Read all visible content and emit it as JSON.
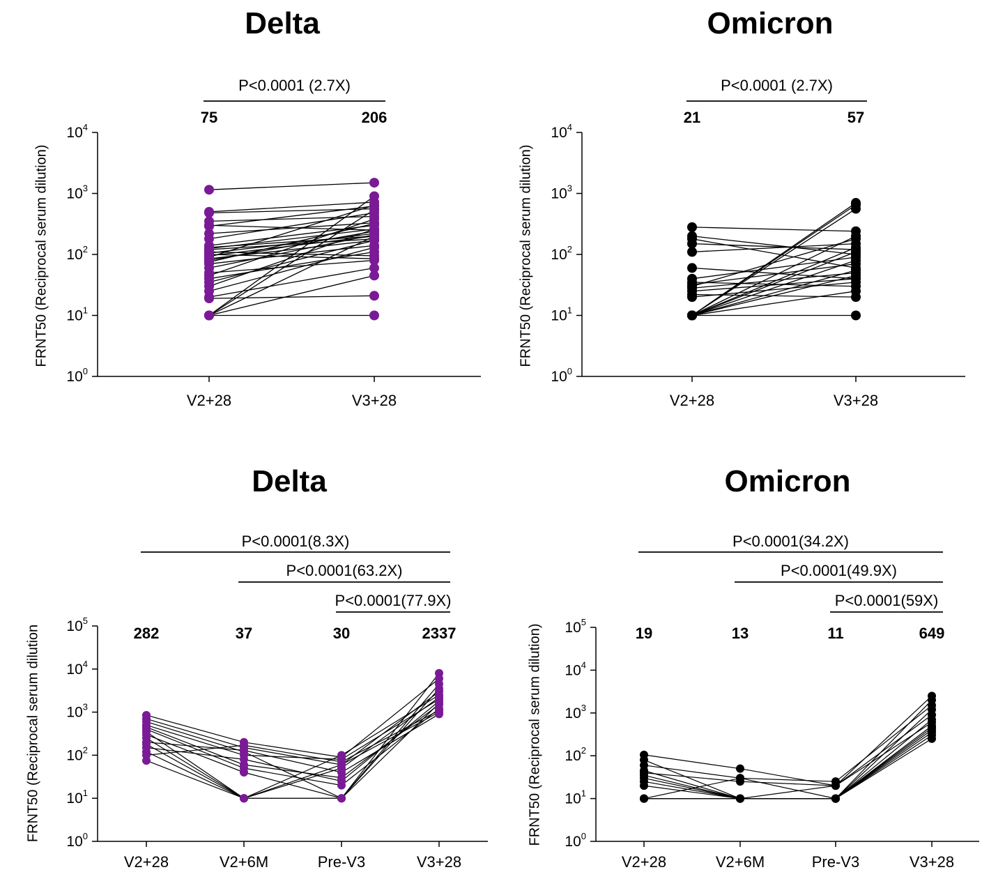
{
  "chart_data": [
    {
      "type": "scatter",
      "title": "Delta",
      "ylabel": "FRNT50  (Reciprocal serum dilution)",
      "yscale": "log",
      "ylim": [
        1,
        10000
      ],
      "ytick_base": "10",
      "ytick_exponents": [
        "0",
        "1",
        "2",
        "3",
        "4"
      ],
      "categories": [
        "V2+28",
        "V3+28"
      ],
      "geomean_labels": [
        "75",
        "206"
      ],
      "color": "#7a1a96",
      "comparisons": [
        {
          "from": 0,
          "to": 1,
          "label": "P<0.0001 (2.7X)"
        }
      ],
      "pairs": [
        [
          1150,
          1500
        ],
        [
          500,
          720
        ],
        [
          480,
          560
        ],
        [
          350,
          420
        ],
        [
          300,
          250
        ],
        [
          290,
          620
        ],
        [
          220,
          330
        ],
        [
          180,
          480
        ],
        [
          140,
          300
        ],
        [
          130,
          200
        ],
        [
          125,
          260
        ],
        [
          120,
          180
        ],
        [
          110,
          95
        ],
        [
          105,
          220
        ],
        [
          100,
          85
        ],
        [
          95,
          200
        ],
        [
          90,
          640
        ],
        [
          85,
          170
        ],
        [
          80,
          240
        ],
        [
          75,
          320
        ],
        [
          70,
          140
        ],
        [
          60,
          210
        ],
        [
          50,
          80
        ],
        [
          45,
          380
        ],
        [
          40,
          110
        ],
        [
          35,
          170
        ],
        [
          30,
          260
        ],
        [
          25,
          130
        ],
        [
          20,
          60
        ],
        [
          19,
          21
        ],
        [
          10,
          10
        ],
        [
          10,
          45
        ],
        [
          10,
          200
        ],
        [
          10,
          540
        ],
        [
          10,
          900
        ]
      ]
    },
    {
      "type": "scatter",
      "title": "Omicron",
      "ylabel": "FRNT50  (Reciprocal serum dilution)",
      "yscale": "log",
      "ylim": [
        1,
        10000
      ],
      "ytick_base": "10",
      "ytick_exponents": [
        "0",
        "1",
        "2",
        "3",
        "4"
      ],
      "categories": [
        "V2+28",
        "V3+28"
      ],
      "geomean_labels": [
        "21",
        "57"
      ],
      "color": "#000000",
      "comparisons": [
        {
          "from": 0,
          "to": 1,
          "label": "P<0.0001 (2.7X)"
        }
      ],
      "pairs": [
        [
          280,
          240
        ],
        [
          200,
          100
        ],
        [
          180,
          60
        ],
        [
          150,
          120
        ],
        [
          110,
          150
        ],
        [
          60,
          40
        ],
        [
          40,
          90
        ],
        [
          35,
          30
        ],
        [
          32,
          70
        ],
        [
          30,
          180
        ],
        [
          28,
          50
        ],
        [
          25,
          40
        ],
        [
          22,
          20
        ],
        [
          20,
          35
        ],
        [
          10,
          10
        ],
        [
          10,
          25
        ],
        [
          10,
          45
        ],
        [
          10,
          55
        ],
        [
          10,
          80
        ],
        [
          10,
          110
        ],
        [
          10,
          130
        ],
        [
          10,
          200
        ],
        [
          10,
          560
        ],
        [
          10,
          650
        ],
        [
          10,
          700
        ]
      ]
    },
    {
      "type": "scatter",
      "title": "Delta",
      "ylabel": "FRNT50  (Reciprocal serum dilution",
      "yscale": "log",
      "ylim": [
        1,
        100000
      ],
      "ytick_base": "10",
      "ytick_exponents": [
        "0",
        "1",
        "2",
        "3",
        "4",
        "5"
      ],
      "categories": [
        "V2+28",
        "V2+6M",
        "Pre-V3",
        "V3+28"
      ],
      "geomean_labels": [
        "282",
        "37",
        "30",
        "2337"
      ],
      "color": "#7a1a96",
      "comparisons": [
        {
          "from": 0,
          "to": 3,
          "label": "P<0.0001(8.3X)"
        },
        {
          "from": 1,
          "to": 3,
          "label": "P<0.0001(63.2X)"
        },
        {
          "from": 2,
          "to": 3,
          "label": "P<0.0001(77.9X)"
        }
      ],
      "series_lines": [
        [
          850,
          200,
          90,
          6000
        ],
        [
          700,
          150,
          60,
          3000
        ],
        [
          600,
          120,
          10,
          8000
        ],
        [
          500,
          100,
          80,
          2000
        ],
        [
          450,
          60,
          30,
          1500
        ],
        [
          400,
          50,
          20,
          1200
        ],
        [
          350,
          10,
          100,
          2500
        ],
        [
          300,
          40,
          10,
          3500
        ],
        [
          250,
          10,
          60,
          1000
        ],
        [
          200,
          130,
          40,
          900
        ],
        [
          180,
          10,
          10,
          4500
        ],
        [
          150,
          80,
          25,
          1800
        ],
        [
          120,
          10,
          50,
          2200
        ],
        [
          100,
          170,
          70,
          1100
        ],
        [
          75,
          10,
          10,
          1600
        ]
      ]
    },
    {
      "type": "scatter",
      "title": "Omicron",
      "ylabel": "FRNT50  (Reciprocal serum dilution)",
      "yscale": "log",
      "ylim": [
        1,
        100000
      ],
      "ytick_base": "10",
      "ytick_exponents": [
        "0",
        "1",
        "2",
        "3",
        "4",
        "5"
      ],
      "categories": [
        "V2+28",
        "V2+6M",
        "Pre-V3",
        "V3+28"
      ],
      "geomean_labels": [
        "19",
        "13",
        "11",
        "649"
      ],
      "color": "#000000",
      "comparisons": [
        {
          "from": 0,
          "to": 3,
          "label": "P<0.0001(34.2X)"
        },
        {
          "from": 1,
          "to": 3,
          "label": "P<0.0001(49.9X)"
        },
        {
          "from": 2,
          "to": 3,
          "label": "P<0.0001(59X)"
        }
      ],
      "series_lines": [
        [
          105,
          50,
          20,
          2500
        ],
        [
          80,
          10,
          10,
          2000
        ],
        [
          60,
          30,
          25,
          1500
        ],
        [
          45,
          10,
          10,
          1200
        ],
        [
          40,
          25,
          20,
          900
        ],
        [
          35,
          10,
          10,
          700
        ],
        [
          30,
          10,
          10,
          500
        ],
        [
          25,
          10,
          10,
          400
        ],
        [
          20,
          10,
          10,
          300
        ],
        [
          10,
          10,
          10,
          250
        ],
        [
          10,
          10,
          20,
          600
        ],
        [
          10,
          30,
          10,
          350
        ],
        [
          10,
          10,
          10,
          450
        ]
      ]
    }
  ]
}
